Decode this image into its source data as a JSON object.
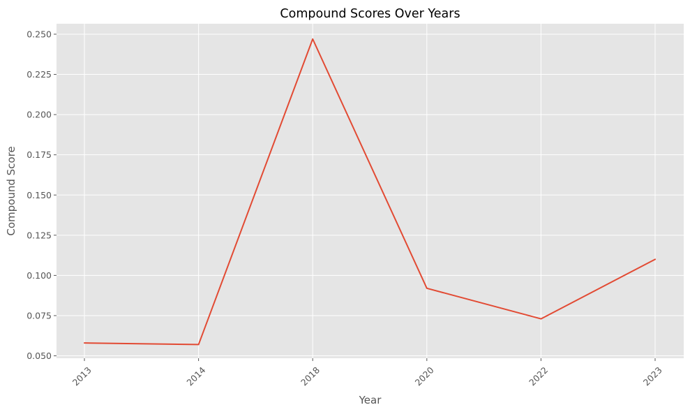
{
  "chart_data": {
    "type": "line",
    "title": "Compound Scores Over Years",
    "xlabel": "Year",
    "ylabel": "Compound Score",
    "categories": [
      "2013",
      "2014",
      "2018",
      "2020",
      "2022",
      "2023"
    ],
    "series": [
      {
        "values": [
          0.058,
          0.057,
          0.247,
          0.092,
          0.073,
          0.11
        ]
      }
    ],
    "ylim": [
      0.0485,
      0.2565
    ],
    "yticks": [
      0.05,
      0.075,
      0.1,
      0.125,
      0.15,
      0.175,
      0.2,
      0.225,
      0.25
    ],
    "ytick_labels": [
      "0.050",
      "0.075",
      "0.100",
      "0.125",
      "0.150",
      "0.175",
      "0.200",
      "0.225",
      "0.250"
    ],
    "x_tick_rotation_deg": 45,
    "grid": true,
    "style": "ggplot",
    "colors": {
      "background": "#e5e5e5",
      "line": "#e24a33",
      "grid": "#ffffff",
      "text": "#555555"
    }
  }
}
